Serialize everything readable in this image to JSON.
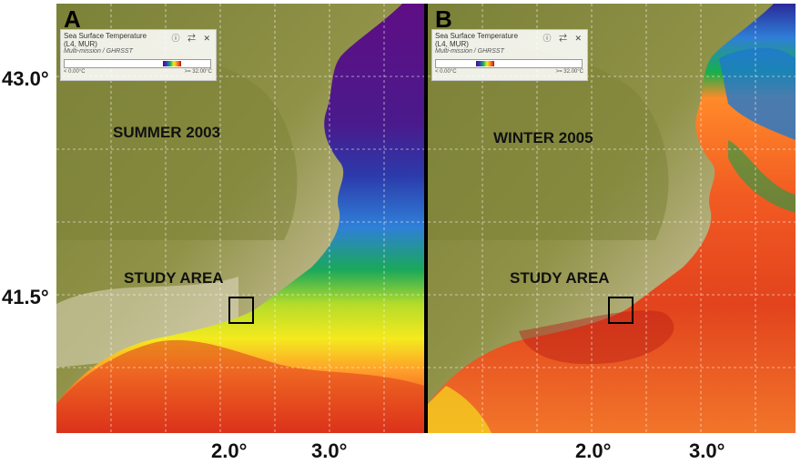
{
  "latitude_labels": [
    "43.0°",
    "41.5°"
  ],
  "longitude_labels": [
    "2.0°",
    "3.0°"
  ],
  "panels": [
    {
      "letter": "A",
      "season": "SUMMER 2003",
      "study_label": "STUDY AREA",
      "legend": {
        "title": "Sea Surface Temperature",
        "subtitle": "(L4, MUR)",
        "source": "Multi-mission / GHRSST",
        "min": "< 0.00°C",
        "max": ">= 32.00°C",
        "icons": [
          "info-icon",
          "settings-icon",
          "close-icon"
        ],
        "icon_glyphs": "ⓘ ⇄ ✕"
      }
    },
    {
      "letter": "B",
      "season": "WINTER 2005",
      "study_label": "STUDY AREA",
      "legend": {
        "title": "Sea Surface Temperature",
        "subtitle": "(L4, MUR)",
        "source": "Multi-mission / GHRSST",
        "min": "< 0.00°C",
        "max": ">= 32.00°C",
        "icons": [
          "info-icon",
          "settings-icon",
          "close-icon"
        ],
        "icon_glyphs": "ⓘ ⇄ ✕"
      }
    }
  ],
  "colors": {
    "land_high": "#6f7a30",
    "land_mid": "#a6a25c",
    "land_low": "#ddd4bd",
    "sst_cold": "#5a0f82",
    "sst_blue": "#2f6fd0",
    "sst_green": "#17b04a",
    "sst_yellow": "#f2ea1e",
    "sst_orange": "#ff8a2a",
    "sst_red": "#d72c1c",
    "sst_darkred": "#a31414"
  }
}
